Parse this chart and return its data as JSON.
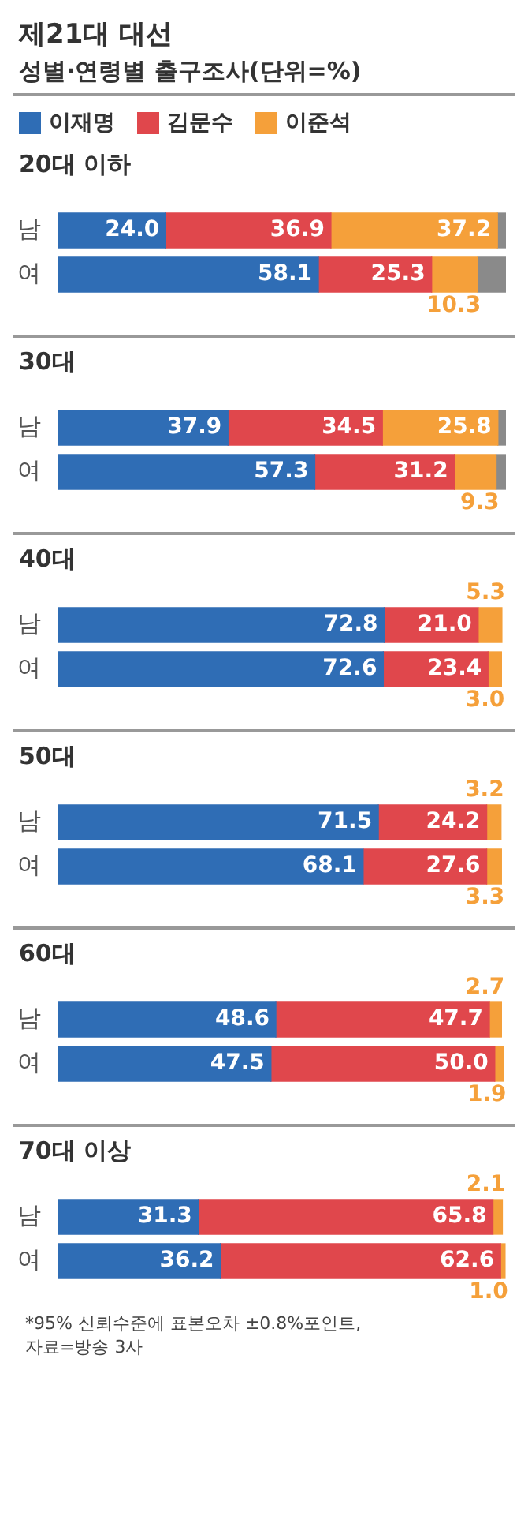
{
  "chart_data": [
    {
      "type": "other",
      "title": "제21대 대선",
      "subtitle": "성별·연령별 출구조사(단위=%)"
    },
    {
      "type": "bar",
      "title": "20대 이하",
      "orientation": "horizontal",
      "stacked": true,
      "categories": [
        "남",
        "여"
      ],
      "xlim": [
        0,
        100
      ],
      "tick_labels": "y",
      "legend": "top",
      "series": [
        {
          "name": "이재명",
          "color": "#2f6db5",
          "values": [
            24.0,
            58.1
          ],
          "value_labels": [
            "24.0",
            "58.1"
          ]
        },
        {
          "name": "김문수",
          "color": "#e0474c",
          "values": [
            36.9,
            25.3
          ],
          "value_labels": [
            "36.9",
            "25.3"
          ]
        },
        {
          "name": "이준석",
          "color": "#f5a03a",
          "values": [
            37.2,
            10.3
          ],
          "value_labels": [
            "37.2",
            "10.3"
          ]
        },
        {
          "color": "#8a8a8a",
          "values": [
            1.9,
            6.3
          ]
        }
      ]
    },
    {
      "type": "bar",
      "title": "30대",
      "orientation": "horizontal",
      "stacked": true,
      "categories": [
        "남",
        "여"
      ],
      "xlim": [
        0,
        100
      ],
      "tick_labels": "y",
      "series": [
        {
          "color": "#2f6db5",
          "values": [
            37.9,
            57.3
          ],
          "value_labels": [
            "37.9",
            "57.3"
          ]
        },
        {
          "color": "#e0474c",
          "values": [
            34.5,
            31.2
          ],
          "value_labels": [
            "34.5",
            "31.2"
          ]
        },
        {
          "color": "#f5a03a",
          "values": [
            25.8,
            9.3
          ],
          "value_labels": [
            "25.8",
            "9.3"
          ]
        },
        {
          "color": "#8a8a8a",
          "values": [
            1.8,
            2.2
          ]
        }
      ]
    },
    {
      "type": "bar",
      "title": "40대",
      "orientation": "horizontal",
      "stacked": true,
      "categories": [
        "남",
        "여"
      ],
      "xlim": [
        0,
        100
      ],
      "tick_labels": "y",
      "series": [
        {
          "color": "#2f6db5",
          "values": [
            72.8,
            72.6
          ],
          "value_labels": [
            "72.8",
            "72.6"
          ]
        },
        {
          "color": "#e0474c",
          "values": [
            21.0,
            23.4
          ],
          "value_labels": [
            "21.0",
            "23.4"
          ]
        },
        {
          "color": "#f5a03a",
          "values": [
            5.3,
            3.0
          ],
          "value_labels": [
            "5.3",
            "3.0"
          ]
        }
      ]
    },
    {
      "type": "bar",
      "title": "50대",
      "orientation": "horizontal",
      "stacked": true,
      "categories": [
        "남",
        "여"
      ],
      "xlim": [
        0,
        100
      ],
      "tick_labels": "y",
      "series": [
        {
          "color": "#2f6db5",
          "values": [
            71.5,
            68.1
          ],
          "value_labels": [
            "71.5",
            "68.1"
          ]
        },
        {
          "color": "#e0474c",
          "values": [
            24.2,
            27.6
          ],
          "value_labels": [
            "24.2",
            "27.6"
          ]
        },
        {
          "color": "#f5a03a",
          "values": [
            3.2,
            3.3
          ],
          "value_labels": [
            "3.2",
            "3.3"
          ]
        }
      ]
    },
    {
      "type": "bar",
      "title": "60대",
      "orientation": "horizontal",
      "stacked": true,
      "categories": [
        "남",
        "여"
      ],
      "xlim": [
        0,
        100
      ],
      "tick_labels": "y",
      "series": [
        {
          "color": "#2f6db5",
          "values": [
            48.6,
            47.5
          ],
          "value_labels": [
            "48.6",
            "47.5"
          ]
        },
        {
          "color": "#e0474c",
          "values": [
            47.7,
            50.0
          ],
          "value_labels": [
            "47.7",
            "50.0"
          ]
        },
        {
          "color": "#f5a03a",
          "values": [
            2.7,
            1.9
          ],
          "value_labels": [
            "2.7",
            "1.9"
          ]
        }
      ]
    },
    {
      "type": "bar",
      "title": "70대 이상",
      "orientation": "horizontal",
      "stacked": true,
      "categories": [
        "남",
        "여"
      ],
      "xlim": [
        0,
        100
      ],
      "tick_labels": "y",
      "annotations": [
        "*95% 신뢰수준에 표본오차 ±0.8%포인트,",
        "자료=방송 3사"
      ],
      "series": [
        {
          "color": "#2f6db5",
          "values": [
            31.3,
            36.2
          ],
          "value_labels": [
            "31.3",
            "36.2"
          ]
        },
        {
          "color": "#e0474c",
          "values": [
            65.8,
            62.6
          ],
          "value_labels": [
            "65.8",
            "62.6"
          ]
        },
        {
          "color": "#f5a03a",
          "values": [
            2.1,
            1.0
          ],
          "value_labels": [
            "2.1",
            "1.0"
          ]
        }
      ]
    }
  ]
}
